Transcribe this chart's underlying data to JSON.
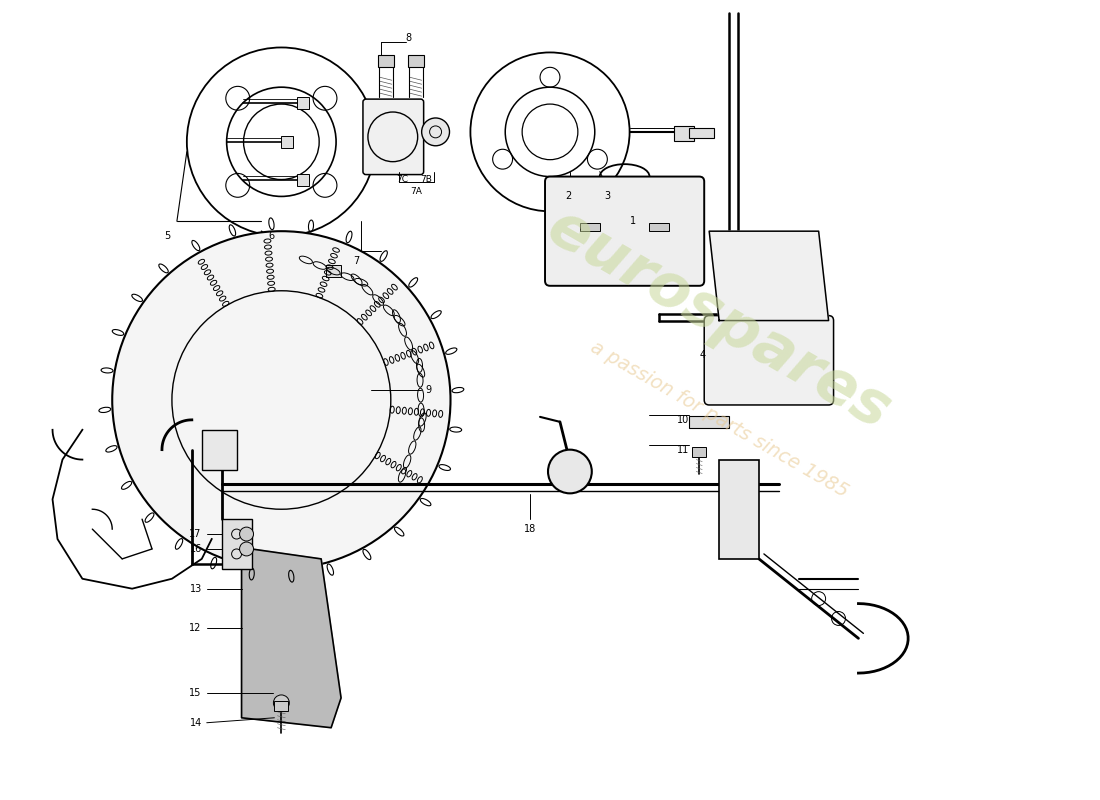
{
  "background_color": "#ffffff",
  "line_color": "#000000",
  "watermark_color_green": "#c8d89a",
  "watermark_color_orange": "#e8c890",
  "fig_width": 11.0,
  "fig_height": 8.0,
  "dpi": 100,
  "xlim": [
    0,
    110
  ],
  "ylim": [
    0,
    80
  ]
}
